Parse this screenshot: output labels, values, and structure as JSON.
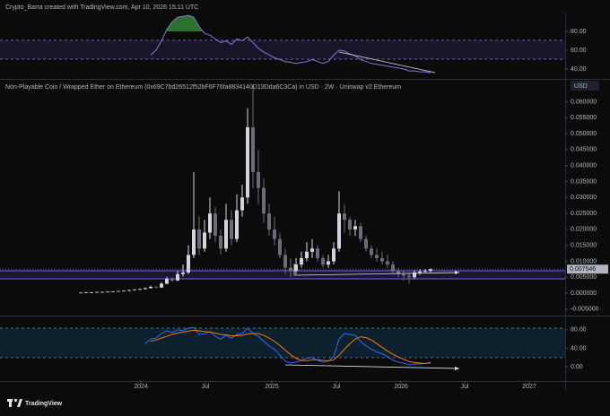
{
  "header": "Crypto_Barra created with TradingView.com, Apr 10, 2026 15:11 UTC",
  "logo": "TradingView",
  "currency": "USD",
  "chart_data": [
    {
      "type": "candlestick",
      "title": "Non-Playable Coin / Wrapped Ether on Ethereum (0x69C7bd26512f52bF6F76fa8834140D13Dda6C3Ca) in USD · 2W · Uniswap v2 Ethereum",
      "xlim": [
        -15,
        90
      ],
      "xticks": [
        {
          "value": 11.17,
          "label": "2024"
        },
        {
          "value": 23.17,
          "label": "Jul"
        },
        {
          "value": 35.5,
          "label": "2025"
        },
        {
          "value": 47.5,
          "label": "Jul"
        },
        {
          "value": 59.5,
          "label": "2026"
        },
        {
          "value": 71.33,
          "label": "Jul"
        },
        {
          "value": 83.33,
          "label": "2027"
        }
      ],
      "ylim": [
        -0.007,
        0.0666
      ],
      "yticks": [
        {
          "value": 0.06,
          "label": "0.060000"
        },
        {
          "value": 0.055,
          "label": "0.055000"
        },
        {
          "value": 0.05,
          "label": "0.050000"
        },
        {
          "value": 0.045,
          "label": "0.045000"
        },
        {
          "value": 0.04,
          "label": "0.040000"
        },
        {
          "value": 0.035,
          "label": "0.035000"
        },
        {
          "value": 0.03,
          "label": "0.030000"
        },
        {
          "value": 0.025,
          "label": "0.025000"
        },
        {
          "value": 0.02,
          "label": "0.020000"
        },
        {
          "value": 0.015,
          "label": "0.015000"
        },
        {
          "value": 0.01,
          "label": "0.010000"
        },
        {
          "value": 0.005,
          "label": "0.005000"
        },
        {
          "value": 0,
          "label": "0.000000"
        },
        {
          "value": -0.005,
          "label": "-0.005000"
        }
      ],
      "up_color": "#d1d4dc",
      "down_color": "#6a6d78",
      "open": [
        0.0001,
        0.0002,
        0.0003,
        0.0003,
        0.0004,
        0.0004,
        0.0005,
        0.0006,
        0.0007,
        0.0008,
        0.001,
        0.0012,
        0.0013,
        0.0016,
        0.002,
        0.0018,
        0.003,
        0.0045,
        0.004,
        0.006,
        0.0065,
        0.012,
        0.02,
        0.014,
        0.019,
        0.025,
        0.018,
        0.014,
        0.023,
        0.017,
        0.026,
        0.03,
        0.052,
        0.038,
        0.033,
        0.025,
        0.02,
        0.017,
        0.012,
        0.008,
        0.007,
        0.009,
        0.011,
        0.013,
        0.014,
        0.011,
        0.009,
        0.01,
        0.014,
        0.025,
        0.023,
        0.02,
        0.021,
        0.017,
        0.014,
        0.012,
        0.011,
        0.01,
        0.009,
        0.007,
        0.006,
        0.0055,
        0.005,
        0.0065,
        0.0068,
        0.007
      ],
      "high": [
        0.0003,
        0.0004,
        0.0004,
        0.0005,
        0.0005,
        0.0006,
        0.0007,
        0.0008,
        0.0009,
        0.0011,
        0.0013,
        0.0015,
        0.0018,
        0.0024,
        0.0023,
        0.0034,
        0.0052,
        0.005,
        0.007,
        0.009,
        0.015,
        0.038,
        0.024,
        0.023,
        0.03,
        0.027,
        0.02,
        0.028,
        0.026,
        0.031,
        0.034,
        0.058,
        0.065,
        0.045,
        0.036,
        0.028,
        0.024,
        0.019,
        0.014,
        0.011,
        0.011,
        0.013,
        0.016,
        0.017,
        0.015,
        0.012,
        0.012,
        0.016,
        0.032,
        0.028,
        0.024,
        0.023,
        0.022,
        0.018,
        0.015,
        0.014,
        0.013,
        0.012,
        0.01,
        0.008,
        0.007,
        0.0065,
        0.0072,
        0.0075,
        0.0076,
        0.0078
      ],
      "low": [
        0.0001,
        0.0001,
        0.0002,
        0.0002,
        0.0003,
        0.0003,
        0.0004,
        0.0005,
        0.0006,
        0.0007,
        0.0009,
        0.0011,
        0.0012,
        0.0015,
        0.0016,
        0.0017,
        0.0028,
        0.0036,
        0.0038,
        0.0052,
        0.006,
        0.011,
        0.012,
        0.013,
        0.017,
        0.016,
        0.012,
        0.013,
        0.015,
        0.016,
        0.024,
        0.028,
        0.033,
        0.028,
        0.022,
        0.018,
        0.015,
        0.011,
        0.006,
        0.005,
        0.006,
        0.008,
        0.01,
        0.011,
        0.01,
        0.008,
        0.008,
        0.009,
        0.013,
        0.019,
        0.018,
        0.018,
        0.016,
        0.013,
        0.011,
        0.01,
        0.009,
        0.008,
        0.006,
        0.005,
        0.004,
        0.003,
        0.0045,
        0.0058,
        0.0062,
        0.0066
      ],
      "close": [
        0.0002,
        0.0003,
        0.0003,
        0.0004,
        0.0004,
        0.0005,
        0.0006,
        0.0007,
        0.0008,
        0.001,
        0.0012,
        0.0013,
        0.0016,
        0.002,
        0.0018,
        0.003,
        0.0045,
        0.004,
        0.006,
        0.0065,
        0.012,
        0.02,
        0.014,
        0.019,
        0.025,
        0.018,
        0.014,
        0.023,
        0.017,
        0.026,
        0.03,
        0.052,
        0.038,
        0.033,
        0.025,
        0.02,
        0.017,
        0.012,
        0.008,
        0.007,
        0.009,
        0.011,
        0.013,
        0.014,
        0.011,
        0.009,
        0.01,
        0.014,
        0.025,
        0.023,
        0.02,
        0.021,
        0.017,
        0.014,
        0.012,
        0.011,
        0.01,
        0.009,
        0.007,
        0.006,
        0.0055,
        0.005,
        0.0065,
        0.0068,
        0.007,
        0.007546
      ]
    },
    {
      "type": "line",
      "xlim": [
        -15,
        90
      ],
      "ylim": [
        29.5,
        100
      ],
      "yticks": [
        {
          "value": 80,
          "label": "80.00"
        },
        {
          "value": 60,
          "label": "60.00"
        },
        {
          "value": 40,
          "label": "40.00"
        }
      ],
      "overbought": 80,
      "fill_color": "#2e7d32",
      "series": [
        {
          "color": "#7e79d8",
          "values": [
            null,
            null,
            null,
            null,
            null,
            null,
            null,
            null,
            null,
            null,
            null,
            null,
            null,
            55,
            60,
            70,
            82,
            90,
            95,
            96,
            97,
            95,
            85,
            78,
            76,
            72,
            68,
            70,
            66,
            72,
            70,
            74,
            68,
            62,
            58,
            55,
            52,
            50,
            48,
            47,
            46,
            47,
            48,
            50,
            48,
            46,
            48,
            55,
            60,
            59,
            56,
            54,
            50,
            48,
            46,
            45,
            44,
            43,
            42,
            41,
            40,
            38,
            38,
            37,
            37,
            36
          ]
        }
      ]
    },
    {
      "type": "line",
      "xlim": [
        -15,
        90
      ],
      "ylim": [
        -31,
        105
      ],
      "yticks": [
        {
          "value": 80,
          "label": "80.00"
        },
        {
          "value": 40,
          "label": "40.00"
        },
        {
          "value": 0,
          "label": "0.00"
        }
      ],
      "series": [
        {
          "color": "#2f6bff",
          "values": [
            null,
            null,
            null,
            null,
            null,
            null,
            null,
            null,
            null,
            null,
            null,
            null,
            50,
            60,
            62,
            72,
            78,
            74,
            80,
            78,
            84,
            85,
            70,
            72,
            76,
            66,
            60,
            68,
            62,
            70,
            72,
            84,
            72,
            66,
            55,
            45,
            38,
            25,
            12,
            8,
            10,
            14,
            18,
            20,
            14,
            10,
            12,
            22,
            60,
            72,
            70,
            68,
            55,
            45,
            38,
            32,
            28,
            22,
            14,
            10,
            8,
            4,
            6,
            6,
            7,
            10
          ]
        },
        {
          "color": "#f57c00",
          "values": [
            null,
            null,
            null,
            null,
            null,
            null,
            null,
            null,
            null,
            null,
            null,
            null,
            null,
            55,
            58,
            62,
            66,
            70,
            73,
            75,
            77,
            79,
            78,
            76,
            75,
            73,
            70,
            69,
            67,
            67,
            68,
            71,
            72,
            72,
            68,
            62,
            55,
            46,
            36,
            26,
            18,
            14,
            13,
            15,
            15,
            14,
            13,
            15,
            25,
            38,
            50,
            60,
            65,
            63,
            58,
            50,
            42,
            34,
            27,
            21,
            16,
            11,
            9,
            8,
            7,
            8
          ]
        }
      ]
    }
  ]
}
